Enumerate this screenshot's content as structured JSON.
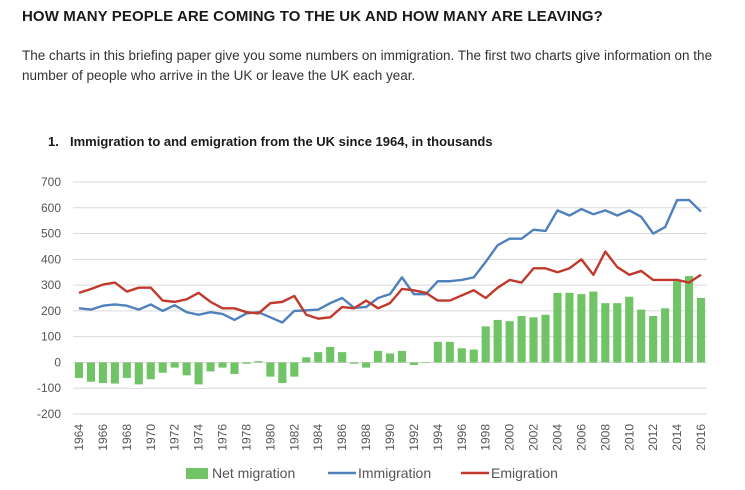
{
  "page": {
    "title": "HOW MANY PEOPLE ARE COMING TO THE UK AND HOW MANY ARE LEAVING?",
    "intro": "The charts in this briefing paper give you some numbers on immigration. The first two charts give information on the number of people who arrive in the UK or leave the UK each year."
  },
  "chart_heading": {
    "number": "1.",
    "text": "Immigration to and emigration from the UK since 1964, in thousands"
  },
  "colors": {
    "net": "#70c465",
    "immigration": "#4f81bd",
    "emigration": "#c0392b",
    "grid": "#d9d9d9",
    "axis_text": "#555555"
  },
  "chart_data": {
    "type": "bar",
    "title": "Immigration to and emigration from the UK since 1964, in thousands",
    "xlabel": "",
    "ylabel": "",
    "ylim": [
      -200,
      700
    ],
    "yticks": [
      700,
      600,
      500,
      400,
      300,
      200,
      100,
      0,
      -100,
      -200
    ],
    "xtick_labels": [
      "1964",
      "1966",
      "1968",
      "1970",
      "1972",
      "1974",
      "1976",
      "1978",
      "1980",
      "1982",
      "1984",
      "1986",
      "1988",
      "1990",
      "1992",
      "1994",
      "1996",
      "1998",
      "2000",
      "2002",
      "2004",
      "2006",
      "2008",
      "2010",
      "2012",
      "2014",
      "2016"
    ],
    "grid": true,
    "legend_position": "bottom",
    "x": [
      1964,
      1965,
      1966,
      1967,
      1968,
      1969,
      1970,
      1971,
      1972,
      1973,
      1974,
      1975,
      1976,
      1977,
      1978,
      1979,
      1980,
      1981,
      1982,
      1983,
      1984,
      1985,
      1986,
      1987,
      1988,
      1989,
      1990,
      1991,
      1992,
      1993,
      1994,
      1995,
      1996,
      1997,
      1998,
      1999,
      2000,
      2001,
      2002,
      2003,
      2004,
      2005,
      2006,
      2007,
      2008,
      2009,
      2010,
      2011,
      2012,
      2013,
      2014,
      2015,
      2016
    ],
    "series": [
      {
        "name": "Net migration",
        "kind": "bar",
        "values": [
          -60,
          -75,
          -80,
          -82,
          -60,
          -85,
          -65,
          -40,
          -20,
          -50,
          -85,
          -35,
          -20,
          -45,
          -5,
          5,
          -55,
          -80,
          -55,
          20,
          40,
          60,
          40,
          -5,
          -20,
          45,
          35,
          45,
          -10,
          0,
          80,
          80,
          55,
          50,
          140,
          165,
          160,
          180,
          175,
          185,
          270,
          270,
          265,
          275,
          230,
          230,
          255,
          205,
          180,
          210,
          315,
          335,
          250
        ]
      },
      {
        "name": "Immigration",
        "kind": "line",
        "values": [
          210,
          205,
          220,
          225,
          220,
          205,
          225,
          200,
          222,
          195,
          185,
          195,
          188,
          165,
          190,
          195,
          175,
          155,
          200,
          202,
          205,
          230,
          250,
          212,
          215,
          250,
          265,
          330,
          265,
          265,
          315,
          315,
          320,
          330,
          390,
          455,
          480,
          480,
          515,
          510,
          590,
          570,
          595,
          575,
          590,
          570,
          590,
          565,
          500,
          525,
          630,
          630,
          585
        ]
      },
      {
        "name": "Emigration",
        "kind": "line",
        "values": [
          270,
          285,
          302,
          310,
          275,
          290,
          290,
          240,
          235,
          245,
          270,
          235,
          210,
          210,
          195,
          190,
          230,
          235,
          258,
          185,
          170,
          175,
          215,
          210,
          240,
          210,
          230,
          285,
          280,
          270,
          240,
          240,
          260,
          280,
          250,
          290,
          320,
          310,
          365,
          365,
          350,
          365,
          400,
          340,
          430,
          370,
          340,
          355,
          320,
          320,
          320,
          310,
          340
        ]
      }
    ]
  }
}
